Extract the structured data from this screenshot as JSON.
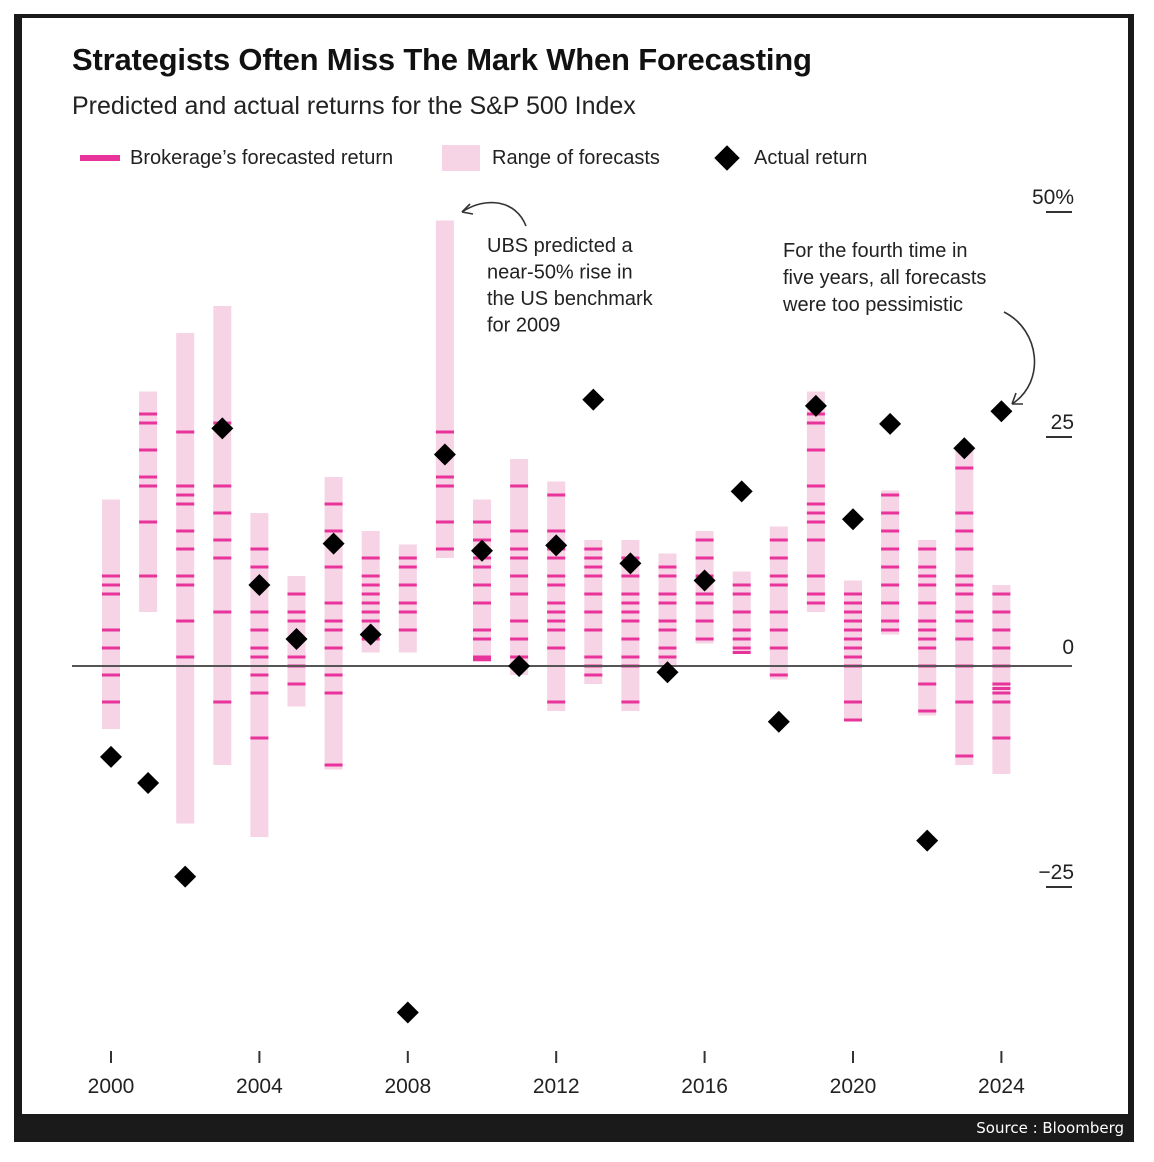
{
  "title": "Strategists Often Miss The Mark When Forecasting",
  "subtitle": "Predicted and actual returns for the S&P 500 Index",
  "source": "Source : Bloomberg",
  "legend": {
    "forecast": "Brokerage’s forecasted return",
    "range": "Range of forecasts",
    "actual": "Actual return"
  },
  "colors": {
    "forecast": "#e8349a",
    "range": "#f7d3e6",
    "actual": "#000000",
    "zero_line": "#555555"
  },
  "annotations": {
    "ubs": [
      "UBS predicted a",
      "near-50% rise in",
      "the US benchmark",
      "for 2009"
    ],
    "fourth": [
      "For the fourth time in",
      "five years, all forecasts",
      "were too pessimistic"
    ]
  },
  "chart_data": {
    "type": "scatter",
    "ylim": [
      -38,
      52
    ],
    "xlim": [
      1999.5,
      2025
    ],
    "y_tick_labels": [
      {
        "value": 50,
        "label": "50%"
      },
      {
        "value": 25,
        "label": "25"
      },
      {
        "value": 0,
        "label": "0"
      },
      {
        "value": -25,
        "label": "−25"
      }
    ],
    "x_tick_labels": [
      {
        "value": 2000,
        "label": "2000"
      },
      {
        "value": 2004,
        "label": "2004"
      },
      {
        "value": 2008,
        "label": "2008"
      },
      {
        "value": 2012,
        "label": "2012"
      },
      {
        "value": 2016,
        "label": "2016"
      },
      {
        "value": 2020,
        "label": "2020"
      },
      {
        "value": 2024,
        "label": "2024"
      }
    ],
    "series": [
      {
        "name": "Range of forecasts",
        "type": "range",
        "values": [
          {
            "year": 2000,
            "low": -7,
            "high": 18.5
          },
          {
            "year": 2001,
            "low": 6,
            "high": 30.5
          },
          {
            "year": 2002,
            "low": -17.5,
            "high": 37
          },
          {
            "year": 2003,
            "low": -11,
            "high": 40
          },
          {
            "year": 2004,
            "low": -19,
            "high": 17
          },
          {
            "year": 2005,
            "low": -4.5,
            "high": 10
          },
          {
            "year": 2006,
            "low": -11.5,
            "high": 21
          },
          {
            "year": 2007,
            "low": 1.5,
            "high": 15
          },
          {
            "year": 2008,
            "low": 1.5,
            "high": 13.5
          },
          {
            "year": 2009,
            "low": 12,
            "high": 49.5
          },
          {
            "year": 2010,
            "low": 0.5,
            "high": 18.5
          },
          {
            "year": 2011,
            "low": -1,
            "high": 23
          },
          {
            "year": 2012,
            "low": -5,
            "high": 20.5
          },
          {
            "year": 2013,
            "low": -2,
            "high": 14
          },
          {
            "year": 2014,
            "low": -5,
            "high": 14
          },
          {
            "year": 2015,
            "low": 0,
            "high": 12.5
          },
          {
            "year": 2016,
            "low": 2.5,
            "high": 15
          },
          {
            "year": 2017,
            "low": 1.5,
            "high": 10.5
          },
          {
            "year": 2018,
            "low": -1.5,
            "high": 15.5
          },
          {
            "year": 2019,
            "low": 6,
            "high": 30.5
          },
          {
            "year": 2020,
            "low": -6,
            "high": 9.5
          },
          {
            "year": 2021,
            "low": 3.5,
            "high": 19.5
          },
          {
            "year": 2022,
            "low": -5.5,
            "high": 14
          },
          {
            "year": 2023,
            "low": -11,
            "high": 24
          },
          {
            "year": 2024,
            "low": -12,
            "high": 9
          }
        ]
      },
      {
        "name": "Brokerage’s forecasted return",
        "type": "ticks",
        "values": [
          {
            "year": 2000,
            "forecasts": [
              -4,
              -1,
              10,
              9,
              8,
              4,
              2
            ]
          },
          {
            "year": 2001,
            "forecasts": [
              28,
              27,
              24,
              21,
              20,
              16,
              10
            ]
          },
          {
            "year": 2002,
            "forecasts": [
              26,
              20,
              19,
              18,
              15,
              13,
              10,
              9,
              5,
              1
            ]
          },
          {
            "year": 2003,
            "forecasts": [
              27,
              20,
              17,
              14,
              12,
              6,
              -4
            ]
          },
          {
            "year": 2004,
            "forecasts": [
              13,
              11,
              9,
              6,
              4,
              2,
              1,
              -1,
              -3,
              -8
            ]
          },
          {
            "year": 2005,
            "forecasts": [
              8,
              6,
              5,
              3,
              1,
              0,
              -2
            ]
          },
          {
            "year": 2006,
            "forecasts": [
              18,
              15,
              11,
              7,
              5,
              4,
              2,
              -1,
              -3,
              -11
            ]
          },
          {
            "year": 2007,
            "forecasts": [
              12,
              10,
              9,
              8,
              7,
              6,
              5,
              3
            ]
          },
          {
            "year": 2008,
            "forecasts": [
              12,
              11,
              9,
              7,
              6,
              4
            ]
          },
          {
            "year": 2009,
            "forecasts": [
              26,
              21,
              20,
              16,
              13
            ]
          },
          {
            "year": 2010,
            "forecasts": [
              16,
              14,
              12,
              11,
              9,
              7,
              4,
              3,
              1,
              0.7
            ]
          },
          {
            "year": 2011,
            "forecasts": [
              20,
              15,
              13,
              12,
              10,
              8,
              5,
              3,
              1
            ]
          },
          {
            "year": 2012,
            "forecasts": [
              19,
              15,
              13,
              12,
              10,
              9,
              7,
              6,
              6,
              5,
              4,
              2,
              -4
            ]
          },
          {
            "year": 2013,
            "forecasts": [
              13,
              12,
              11,
              10,
              8,
              6,
              4,
              1,
              0,
              -1
            ]
          },
          {
            "year": 2014,
            "forecasts": [
              12,
              10,
              8,
              7,
              6,
              5,
              3,
              1,
              0,
              -4
            ]
          },
          {
            "year": 2015,
            "forecasts": [
              11,
              10,
              8,
              7,
              5,
              4,
              2,
              1
            ]
          },
          {
            "year": 2016,
            "forecasts": [
              14,
              12,
              10,
              8,
              7,
              5,
              3
            ]
          },
          {
            "year": 2017,
            "forecasts": [
              9,
              8,
              6,
              4,
              3,
              2,
              1.5
            ]
          },
          {
            "year": 2018,
            "forecasts": [
              14,
              12,
              10,
              9,
              6,
              6,
              4,
              2,
              -1
            ]
          },
          {
            "year": 2019,
            "forecasts": [
              29,
              28,
              27,
              24,
              20,
              18,
              17,
              16,
              14,
              10,
              8,
              7
            ]
          },
          {
            "year": 2020,
            "forecasts": [
              8,
              7,
              6,
              5,
              4,
              3,
              2,
              1,
              0,
              -4,
              -6
            ]
          },
          {
            "year": 2021,
            "forecasts": [
              19,
              17,
              15,
              13,
              11,
              9,
              7,
              5,
              4
            ]
          },
          {
            "year": 2022,
            "forecasts": [
              13,
              11,
              10,
              9,
              7,
              5,
              4,
              3,
              2,
              0,
              -2,
              -5
            ]
          },
          {
            "year": 2023,
            "forecasts": [
              22,
              17,
              15,
              13,
              10,
              9,
              8,
              6,
              5,
              3,
              0,
              -4,
              -10
            ]
          },
          {
            "year": 2024,
            "forecasts": [
              8,
              6,
              4,
              2,
              0,
              -2,
              -2.5,
              -3,
              -4,
              -8
            ]
          }
        ]
      },
      {
        "name": "Actual return",
        "type": "points",
        "values": [
          {
            "year": 2000,
            "value": -10.1
          },
          {
            "year": 2001,
            "value": -13
          },
          {
            "year": 2002,
            "value": -23.4
          },
          {
            "year": 2003,
            "value": 26.4
          },
          {
            "year": 2004,
            "value": 9
          },
          {
            "year": 2005,
            "value": 3
          },
          {
            "year": 2006,
            "value": 13.6
          },
          {
            "year": 2007,
            "value": 3.5
          },
          {
            "year": 2008,
            "value": -38.5
          },
          {
            "year": 2009,
            "value": 23.5
          },
          {
            "year": 2010,
            "value": 12.8
          },
          {
            "year": 2011,
            "value": 0
          },
          {
            "year": 2012,
            "value": 13.4
          },
          {
            "year": 2013,
            "value": 29.6
          },
          {
            "year": 2014,
            "value": 11.4
          },
          {
            "year": 2015,
            "value": -0.7
          },
          {
            "year": 2016,
            "value": 9.5
          },
          {
            "year": 2017,
            "value": 19.4
          },
          {
            "year": 2018,
            "value": -6.2
          },
          {
            "year": 2019,
            "value": 28.9
          },
          {
            "year": 2020,
            "value": 16.3
          },
          {
            "year": 2021,
            "value": 26.9
          },
          {
            "year": 2022,
            "value": -19.4
          },
          {
            "year": 2023,
            "value": 24.2
          },
          {
            "year": 2024,
            "value": 28.3
          }
        ]
      }
    ]
  }
}
